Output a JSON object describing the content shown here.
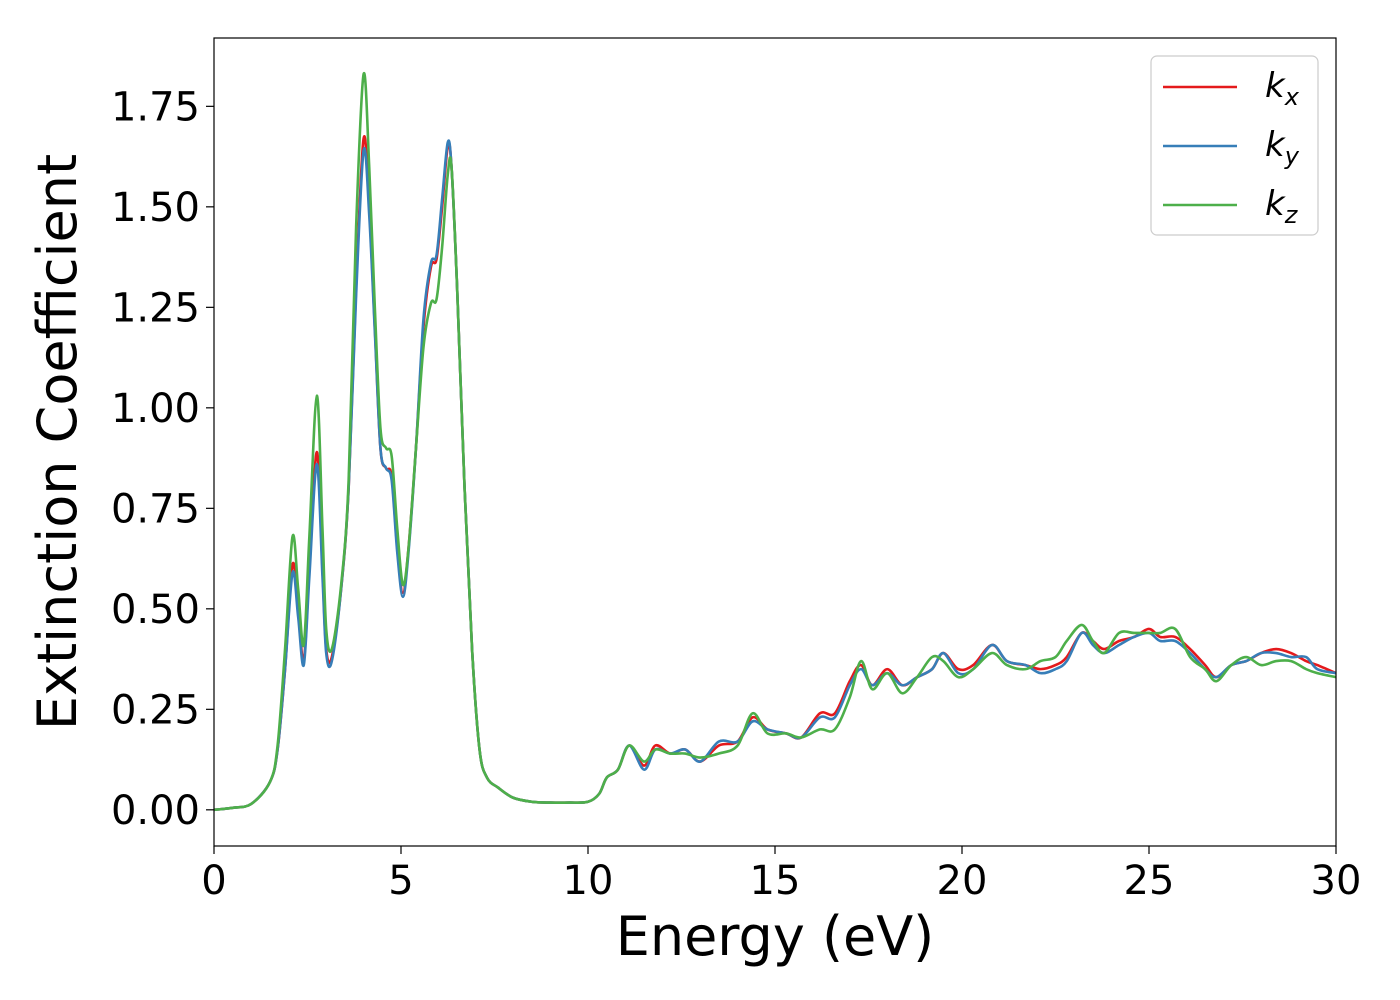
{
  "chart_data": {
    "type": "line",
    "title": "",
    "xlabel": "Energy (eV)",
    "ylabel": "Extinction Coefficient",
    "xlim": [
      0,
      30
    ],
    "ylim": [
      -0.09,
      1.92
    ],
    "xticks": [
      0,
      5,
      10,
      15,
      20,
      25,
      30
    ],
    "xtick_labels": [
      "0",
      "5",
      "10",
      "15",
      "20",
      "25",
      "30"
    ],
    "yticks": [
      0,
      0.25,
      0.5,
      0.75,
      1.0,
      1.25,
      1.5,
      1.75
    ],
    "ytick_labels": [
      "0.00",
      "0.25",
      "0.50",
      "0.75",
      "1.00",
      "1.25",
      "1.50",
      "1.75"
    ],
    "grid": false,
    "legend_position": "top-right",
    "series": [
      {
        "name": "k_x",
        "label_base": "k",
        "label_sub": "x",
        "color": "#e41a1c",
        "points": [
          [
            0,
            0.0
          ],
          [
            0.5,
            0.005
          ],
          [
            1,
            0.015
          ],
          [
            1.5,
            0.07
          ],
          [
            1.7,
            0.15
          ],
          [
            1.9,
            0.35
          ],
          [
            2.1,
            0.61
          ],
          [
            2.25,
            0.5
          ],
          [
            2.4,
            0.37
          ],
          [
            2.55,
            0.6
          ],
          [
            2.75,
            0.89
          ],
          [
            2.9,
            0.6
          ],
          [
            3.0,
            0.4
          ],
          [
            3.15,
            0.38
          ],
          [
            3.4,
            0.55
          ],
          [
            3.6,
            0.8
          ],
          [
            3.8,
            1.3
          ],
          [
            4.0,
            1.67
          ],
          [
            4.15,
            1.5
          ],
          [
            4.3,
            1.2
          ],
          [
            4.45,
            0.9
          ],
          [
            4.6,
            0.85
          ],
          [
            4.75,
            0.83
          ],
          [
            4.9,
            0.65
          ],
          [
            5.05,
            0.54
          ],
          [
            5.2,
            0.65
          ],
          [
            5.4,
            0.9
          ],
          [
            5.6,
            1.2
          ],
          [
            5.8,
            1.35
          ],
          [
            5.95,
            1.37
          ],
          [
            6.1,
            1.5
          ],
          [
            6.25,
            1.65
          ],
          [
            6.35,
            1.6
          ],
          [
            6.5,
            1.3
          ],
          [
            6.7,
            0.8
          ],
          [
            6.9,
            0.4
          ],
          [
            7.1,
            0.15
          ],
          [
            7.3,
            0.08
          ],
          [
            7.6,
            0.055
          ],
          [
            8,
            0.03
          ],
          [
            8.5,
            0.02
          ],
          [
            9,
            0.018
          ],
          [
            9.5,
            0.018
          ],
          [
            10,
            0.02
          ],
          [
            10.3,
            0.04
          ],
          [
            10.5,
            0.08
          ],
          [
            10.8,
            0.1
          ],
          [
            11.1,
            0.16
          ],
          [
            11.5,
            0.11
          ],
          [
            11.8,
            0.16
          ],
          [
            12.2,
            0.14
          ],
          [
            12.6,
            0.15
          ],
          [
            13.0,
            0.12
          ],
          [
            13.5,
            0.16
          ],
          [
            14.0,
            0.17
          ],
          [
            14.4,
            0.23
          ],
          [
            14.8,
            0.2
          ],
          [
            15.3,
            0.19
          ],
          [
            15.7,
            0.18
          ],
          [
            16.2,
            0.24
          ],
          [
            16.6,
            0.24
          ],
          [
            17.0,
            0.32
          ],
          [
            17.3,
            0.36
          ],
          [
            17.6,
            0.31
          ],
          [
            18.0,
            0.35
          ],
          [
            18.4,
            0.31
          ],
          [
            18.8,
            0.33
          ],
          [
            19.2,
            0.35
          ],
          [
            19.5,
            0.39
          ],
          [
            19.9,
            0.35
          ],
          [
            20.3,
            0.36
          ],
          [
            20.8,
            0.41
          ],
          [
            21.2,
            0.37
          ],
          [
            21.7,
            0.36
          ],
          [
            22.1,
            0.35
          ],
          [
            22.5,
            0.36
          ],
          [
            22.8,
            0.38
          ],
          [
            23.2,
            0.44
          ],
          [
            23.5,
            0.42
          ],
          [
            23.8,
            0.4
          ],
          [
            24.2,
            0.42
          ],
          [
            24.6,
            0.43
          ],
          [
            25.0,
            0.45
          ],
          [
            25.3,
            0.43
          ],
          [
            25.7,
            0.43
          ],
          [
            26.1,
            0.4
          ],
          [
            26.5,
            0.36
          ],
          [
            26.8,
            0.33
          ],
          [
            27.2,
            0.36
          ],
          [
            27.6,
            0.37
          ],
          [
            28.0,
            0.39
          ],
          [
            28.4,
            0.4
          ],
          [
            28.8,
            0.39
          ],
          [
            29.2,
            0.37
          ],
          [
            29.5,
            0.36
          ],
          [
            30.0,
            0.34
          ]
        ]
      },
      {
        "name": "k_y",
        "label_base": "k",
        "label_sub": "y",
        "color": "#377eb8",
        "points": [
          [
            0,
            0.0
          ],
          [
            0.5,
            0.005
          ],
          [
            1,
            0.015
          ],
          [
            1.5,
            0.07
          ],
          [
            1.7,
            0.15
          ],
          [
            1.9,
            0.35
          ],
          [
            2.1,
            0.59
          ],
          [
            2.25,
            0.48
          ],
          [
            2.4,
            0.36
          ],
          [
            2.55,
            0.58
          ],
          [
            2.75,
            0.86
          ],
          [
            2.9,
            0.58
          ],
          [
            3.0,
            0.39
          ],
          [
            3.15,
            0.37
          ],
          [
            3.4,
            0.55
          ],
          [
            3.6,
            0.8
          ],
          [
            3.8,
            1.28
          ],
          [
            4.0,
            1.64
          ],
          [
            4.15,
            1.48
          ],
          [
            4.3,
            1.19
          ],
          [
            4.45,
            0.9
          ],
          [
            4.6,
            0.85
          ],
          [
            4.75,
            0.82
          ],
          [
            4.9,
            0.64
          ],
          [
            5.05,
            0.53
          ],
          [
            5.2,
            0.64
          ],
          [
            5.4,
            0.9
          ],
          [
            5.6,
            1.22
          ],
          [
            5.8,
            1.36
          ],
          [
            5.95,
            1.38
          ],
          [
            6.1,
            1.52
          ],
          [
            6.25,
            1.66
          ],
          [
            6.35,
            1.6
          ],
          [
            6.5,
            1.3
          ],
          [
            6.7,
            0.8
          ],
          [
            6.9,
            0.4
          ],
          [
            7.1,
            0.15
          ],
          [
            7.3,
            0.08
          ],
          [
            7.6,
            0.055
          ],
          [
            8,
            0.03
          ],
          [
            8.5,
            0.02
          ],
          [
            9,
            0.018
          ],
          [
            9.5,
            0.018
          ],
          [
            10,
            0.02
          ],
          [
            10.3,
            0.04
          ],
          [
            10.5,
            0.08
          ],
          [
            10.8,
            0.1
          ],
          [
            11.1,
            0.16
          ],
          [
            11.5,
            0.1
          ],
          [
            11.8,
            0.15
          ],
          [
            12.2,
            0.14
          ],
          [
            12.6,
            0.15
          ],
          [
            13.0,
            0.12
          ],
          [
            13.5,
            0.17
          ],
          [
            14.0,
            0.17
          ],
          [
            14.4,
            0.22
          ],
          [
            14.8,
            0.2
          ],
          [
            15.3,
            0.19
          ],
          [
            15.7,
            0.18
          ],
          [
            16.2,
            0.23
          ],
          [
            16.6,
            0.23
          ],
          [
            17.0,
            0.31
          ],
          [
            17.3,
            0.35
          ],
          [
            17.6,
            0.31
          ],
          [
            18.0,
            0.34
          ],
          [
            18.4,
            0.31
          ],
          [
            18.8,
            0.33
          ],
          [
            19.2,
            0.35
          ],
          [
            19.5,
            0.39
          ],
          [
            19.9,
            0.34
          ],
          [
            20.3,
            0.35
          ],
          [
            20.8,
            0.41
          ],
          [
            21.2,
            0.37
          ],
          [
            21.7,
            0.36
          ],
          [
            22.1,
            0.34
          ],
          [
            22.5,
            0.35
          ],
          [
            22.8,
            0.37
          ],
          [
            23.2,
            0.44
          ],
          [
            23.5,
            0.41
          ],
          [
            23.8,
            0.39
          ],
          [
            24.2,
            0.41
          ],
          [
            24.6,
            0.43
          ],
          [
            25.0,
            0.44
          ],
          [
            25.3,
            0.42
          ],
          [
            25.7,
            0.42
          ],
          [
            26.1,
            0.39
          ],
          [
            26.5,
            0.35
          ],
          [
            26.8,
            0.33
          ],
          [
            27.2,
            0.36
          ],
          [
            27.6,
            0.37
          ],
          [
            28.0,
            0.39
          ],
          [
            28.4,
            0.39
          ],
          [
            28.8,
            0.38
          ],
          [
            29.2,
            0.38
          ],
          [
            29.5,
            0.35
          ],
          [
            30.0,
            0.34
          ]
        ]
      },
      {
        "name": "k_z",
        "label_base": "k",
        "label_sub": "z",
        "color": "#4daf4a",
        "points": [
          [
            0,
            0.0
          ],
          [
            0.5,
            0.005
          ],
          [
            1,
            0.015
          ],
          [
            1.5,
            0.07
          ],
          [
            1.7,
            0.16
          ],
          [
            1.9,
            0.4
          ],
          [
            2.1,
            0.68
          ],
          [
            2.25,
            0.55
          ],
          [
            2.4,
            0.41
          ],
          [
            2.55,
            0.68
          ],
          [
            2.75,
            1.03
          ],
          [
            2.9,
            0.7
          ],
          [
            3.0,
            0.45
          ],
          [
            3.15,
            0.4
          ],
          [
            3.4,
            0.56
          ],
          [
            3.6,
            0.82
          ],
          [
            3.8,
            1.45
          ],
          [
            4.0,
            1.83
          ],
          [
            4.15,
            1.6
          ],
          [
            4.3,
            1.25
          ],
          [
            4.45,
            0.95
          ],
          [
            4.6,
            0.9
          ],
          [
            4.75,
            0.88
          ],
          [
            4.9,
            0.7
          ],
          [
            5.05,
            0.56
          ],
          [
            5.2,
            0.65
          ],
          [
            5.4,
            0.9
          ],
          [
            5.6,
            1.15
          ],
          [
            5.8,
            1.26
          ],
          [
            5.95,
            1.27
          ],
          [
            6.1,
            1.4
          ],
          [
            6.25,
            1.58
          ],
          [
            6.35,
            1.6
          ],
          [
            6.5,
            1.3
          ],
          [
            6.7,
            0.8
          ],
          [
            6.9,
            0.4
          ],
          [
            7.1,
            0.15
          ],
          [
            7.3,
            0.08
          ],
          [
            7.6,
            0.055
          ],
          [
            8,
            0.03
          ],
          [
            8.5,
            0.02
          ],
          [
            9,
            0.018
          ],
          [
            9.5,
            0.018
          ],
          [
            10,
            0.02
          ],
          [
            10.3,
            0.04
          ],
          [
            10.5,
            0.08
          ],
          [
            10.8,
            0.1
          ],
          [
            11.1,
            0.16
          ],
          [
            11.5,
            0.12
          ],
          [
            11.8,
            0.15
          ],
          [
            12.2,
            0.14
          ],
          [
            12.6,
            0.14
          ],
          [
            13.0,
            0.13
          ],
          [
            13.5,
            0.14
          ],
          [
            14.0,
            0.16
          ],
          [
            14.4,
            0.24
          ],
          [
            14.8,
            0.19
          ],
          [
            15.3,
            0.19
          ],
          [
            15.7,
            0.18
          ],
          [
            16.2,
            0.2
          ],
          [
            16.6,
            0.2
          ],
          [
            17.0,
            0.28
          ],
          [
            17.3,
            0.37
          ],
          [
            17.6,
            0.3
          ],
          [
            18.0,
            0.34
          ],
          [
            18.4,
            0.29
          ],
          [
            18.8,
            0.33
          ],
          [
            19.2,
            0.38
          ],
          [
            19.5,
            0.37
          ],
          [
            19.9,
            0.33
          ],
          [
            20.3,
            0.35
          ],
          [
            20.8,
            0.39
          ],
          [
            21.2,
            0.36
          ],
          [
            21.7,
            0.35
          ],
          [
            22.1,
            0.37
          ],
          [
            22.5,
            0.38
          ],
          [
            22.8,
            0.42
          ],
          [
            23.2,
            0.46
          ],
          [
            23.5,
            0.42
          ],
          [
            23.8,
            0.39
          ],
          [
            24.2,
            0.44
          ],
          [
            24.6,
            0.44
          ],
          [
            25.0,
            0.44
          ],
          [
            25.3,
            0.44
          ],
          [
            25.7,
            0.45
          ],
          [
            26.1,
            0.38
          ],
          [
            26.5,
            0.35
          ],
          [
            26.8,
            0.32
          ],
          [
            27.2,
            0.36
          ],
          [
            27.6,
            0.38
          ],
          [
            28.0,
            0.36
          ],
          [
            28.4,
            0.37
          ],
          [
            28.8,
            0.37
          ],
          [
            29.2,
            0.35
          ],
          [
            29.5,
            0.34
          ],
          [
            30.0,
            0.33
          ]
        ]
      }
    ]
  }
}
